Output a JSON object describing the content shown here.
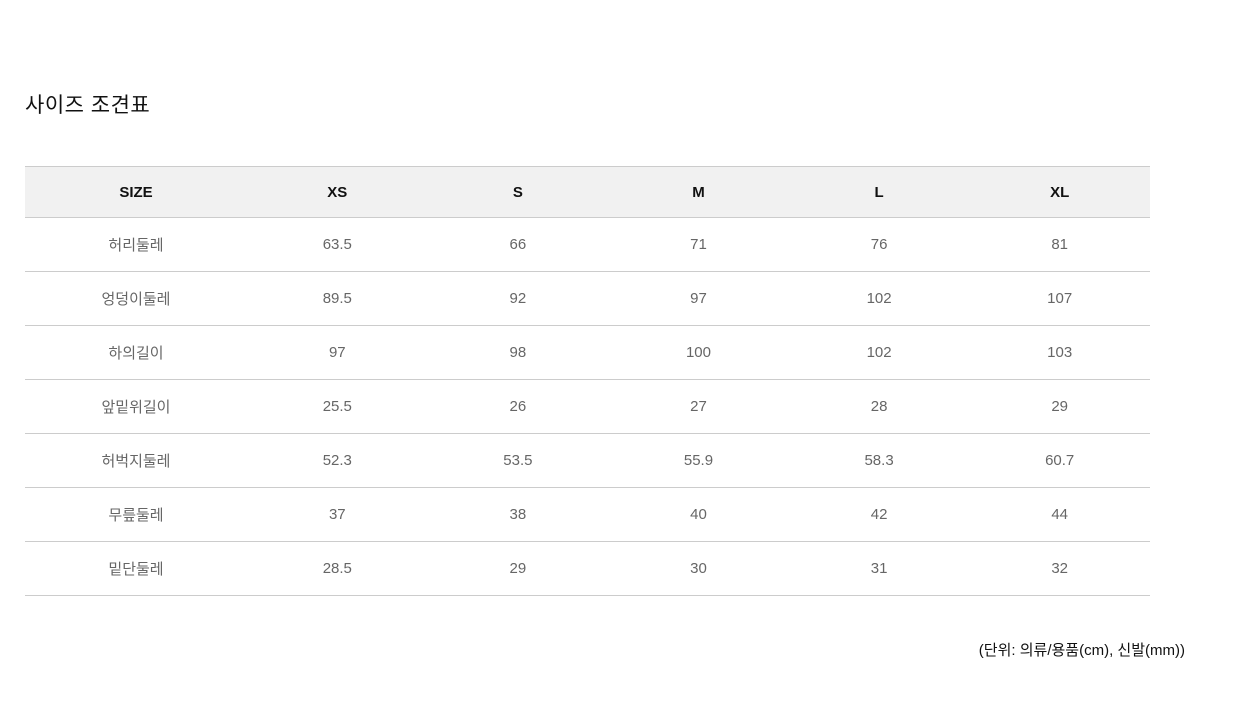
{
  "page": {
    "title": "사이즈 조견표",
    "unit_note": "(단위: 의류/용품(cm), 신발(mm))"
  },
  "size_table": {
    "columns": [
      "SIZE",
      "XS",
      "S",
      "M",
      "L",
      "XL"
    ],
    "rows": [
      {
        "label": "허리둘레",
        "values": [
          "63.5",
          "66",
          "71",
          "76",
          "81"
        ]
      },
      {
        "label": "엉덩이둘레",
        "values": [
          "89.5",
          "92",
          "97",
          "102",
          "107"
        ]
      },
      {
        "label": "하의길이",
        "values": [
          "97",
          "98",
          "100",
          "102",
          "103"
        ]
      },
      {
        "label": "앞밑위길이",
        "values": [
          "25.5",
          "26",
          "27",
          "28",
          "29"
        ]
      },
      {
        "label": "허벅지둘레",
        "values": [
          "52.3",
          "53.5",
          "55.9",
          "58.3",
          "60.7"
        ]
      },
      {
        "label": "무릎둘레",
        "values": [
          "37",
          "38",
          "40",
          "42",
          "44"
        ]
      },
      {
        "label": "밑단둘레",
        "values": [
          "28.5",
          "29",
          "30",
          "31",
          "32"
        ]
      }
    ]
  },
  "colors": {
    "header_bg": "#f1f1f1",
    "border": "#cccccc",
    "header_text": "#111111",
    "body_text": "#666666",
    "note_text": "#111111",
    "title_text": "#111111"
  }
}
